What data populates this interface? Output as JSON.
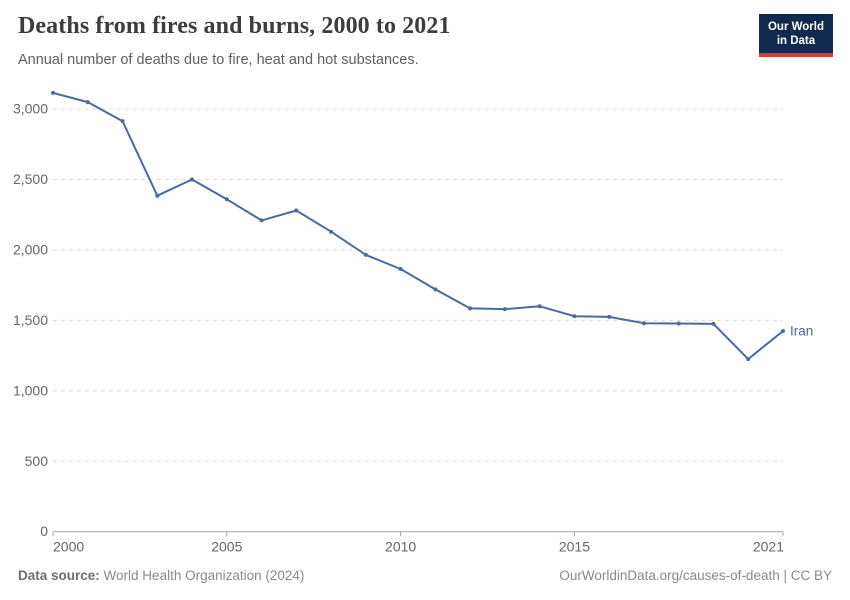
{
  "header": {
    "logo": {
      "line1": "Our World",
      "line2": "in Data"
    }
  },
  "chart_data": {
    "type": "line",
    "title": "Deaths from fires and burns, 2000 to 2021",
    "subtitle": "Annual number of deaths due to fire, heat and hot substances.",
    "x": [
      2000,
      2001,
      2002,
      2003,
      2004,
      2005,
      2006,
      2007,
      2008,
      2009,
      2010,
      2011,
      2012,
      2013,
      2014,
      2015,
      2016,
      2017,
      2018,
      2019,
      2020,
      2021
    ],
    "series": [
      {
        "name": "Iran",
        "color": "#4d69a3",
        "values": [
          3115,
          3050,
          2915,
          2385,
          2500,
          2360,
          2210,
          2280,
          2130,
          1965,
          1865,
          1720,
          1585,
          1580,
          1600,
          1530,
          1525,
          1480,
          1478,
          1475,
          1225,
          1425
        ]
      }
    ],
    "x_ticks": [
      2000,
      2005,
      2010,
      2015,
      2021
    ],
    "y_ticks": [
      0,
      500,
      1000,
      1500,
      2000,
      2500,
      3000
    ],
    "xlim": [
      2000,
      2021
    ],
    "ylim": [
      0,
      3200
    ],
    "grid": "horizontal-dashed",
    "legend_position": "end-of-line-label"
  },
  "footer": {
    "datasource_label": "Data source:",
    "datasource_value": "World Health Organization (2024)",
    "link": "OurWorldinData.org/causes-of-death",
    "license": " | CC BY"
  },
  "colors": {
    "line": "#4d69a3",
    "grid": "#dcdcdc",
    "axis": "#a3a3a3",
    "tick_label": "#666666",
    "title": "#3d3d3d",
    "subtitle": "#606060",
    "footer_text": "#8a8a8a",
    "logo_background": "#102a4e",
    "logo_accent": "#dc3a2a"
  }
}
